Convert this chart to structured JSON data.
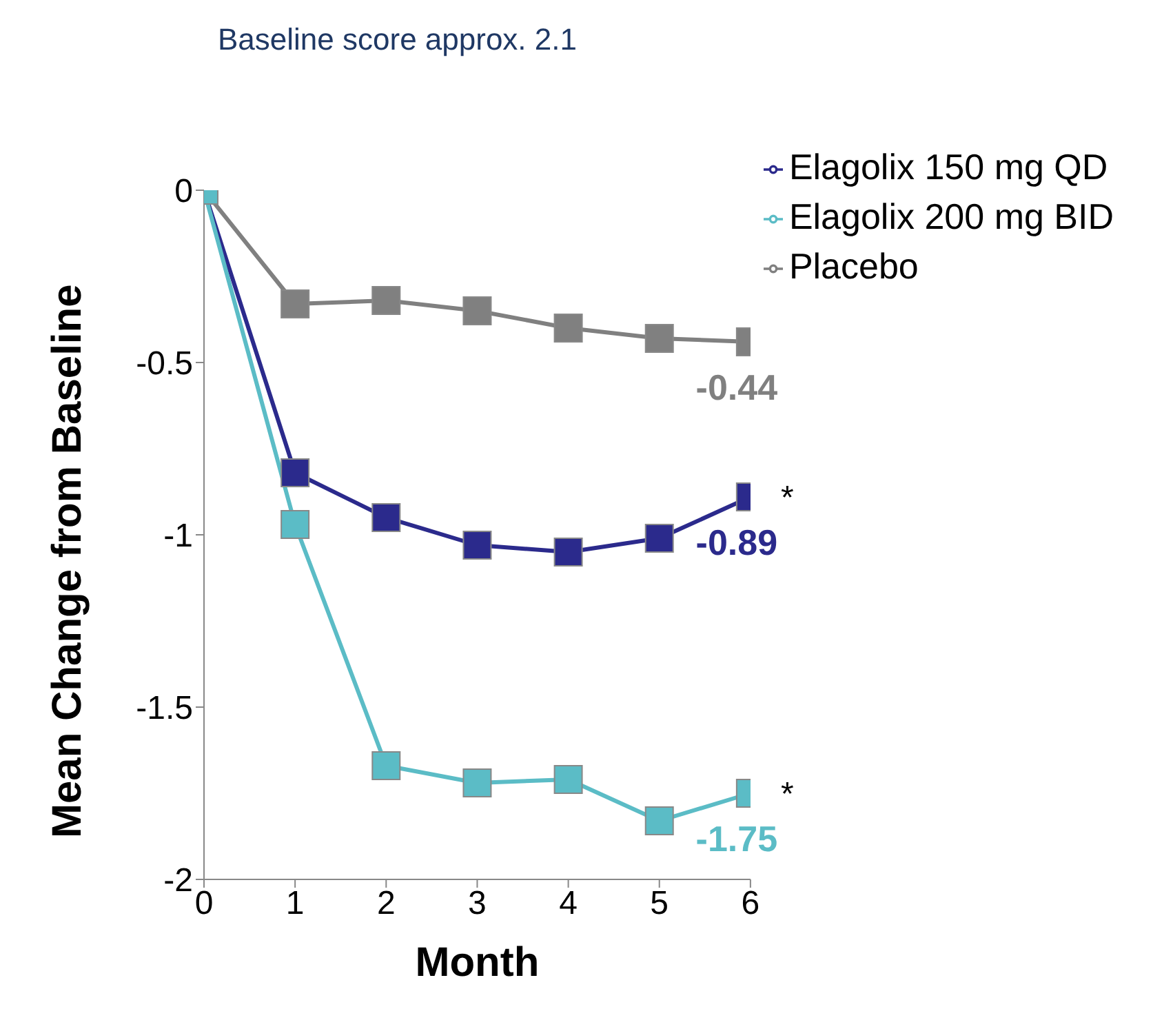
{
  "chart_data": {
    "type": "line",
    "title": "Baseline score approx. 2.1",
    "xlabel": "Month",
    "ylabel": "Mean Change from Baseline",
    "x": [
      0,
      1,
      2,
      3,
      4,
      5,
      6
    ],
    "series": [
      {
        "name": "Placebo",
        "color": "#808080",
        "values": [
          0,
          -0.33,
          -0.32,
          -0.35,
          -0.4,
          -0.43,
          -0.44
        ],
        "value_labels": [
          null,
          null,
          null,
          null,
          null,
          null,
          "-0.44"
        ]
      },
      {
        "name": "Elagolix 150 mg QD",
        "color": "#2b2a8c",
        "values": [
          0,
          -0.82,
          -0.95,
          -1.03,
          -1.05,
          -1.01,
          -0.89
        ],
        "value_labels": [
          null,
          null,
          null,
          null,
          null,
          null,
          "-0.89"
        ]
      },
      {
        "name": "Elagolix 200 mg BID",
        "color": "#5bbcc6",
        "values": [
          0,
          -0.97,
          -1.67,
          -1.72,
          -1.71,
          -1.83,
          -1.75
        ],
        "value_labels": [
          null,
          null,
          null,
          null,
          null,
          null,
          "-1.75"
        ]
      }
    ],
    "annotations": [
      {
        "text": "*",
        "x": 6,
        "y": -0.89
      },
      {
        "text": "*",
        "x": 6,
        "y": -1.75
      }
    ],
    "xlim": [
      0,
      6
    ],
    "xticks": [
      0,
      1,
      2,
      3,
      4,
      5,
      6
    ],
    "ylim": [
      -2,
      0
    ],
    "yticks": [
      -2,
      -1.5,
      -1,
      -0.5,
      0
    ],
    "grid": false,
    "legend": "top right",
    "marker": "square",
    "line_style": "solid"
  }
}
